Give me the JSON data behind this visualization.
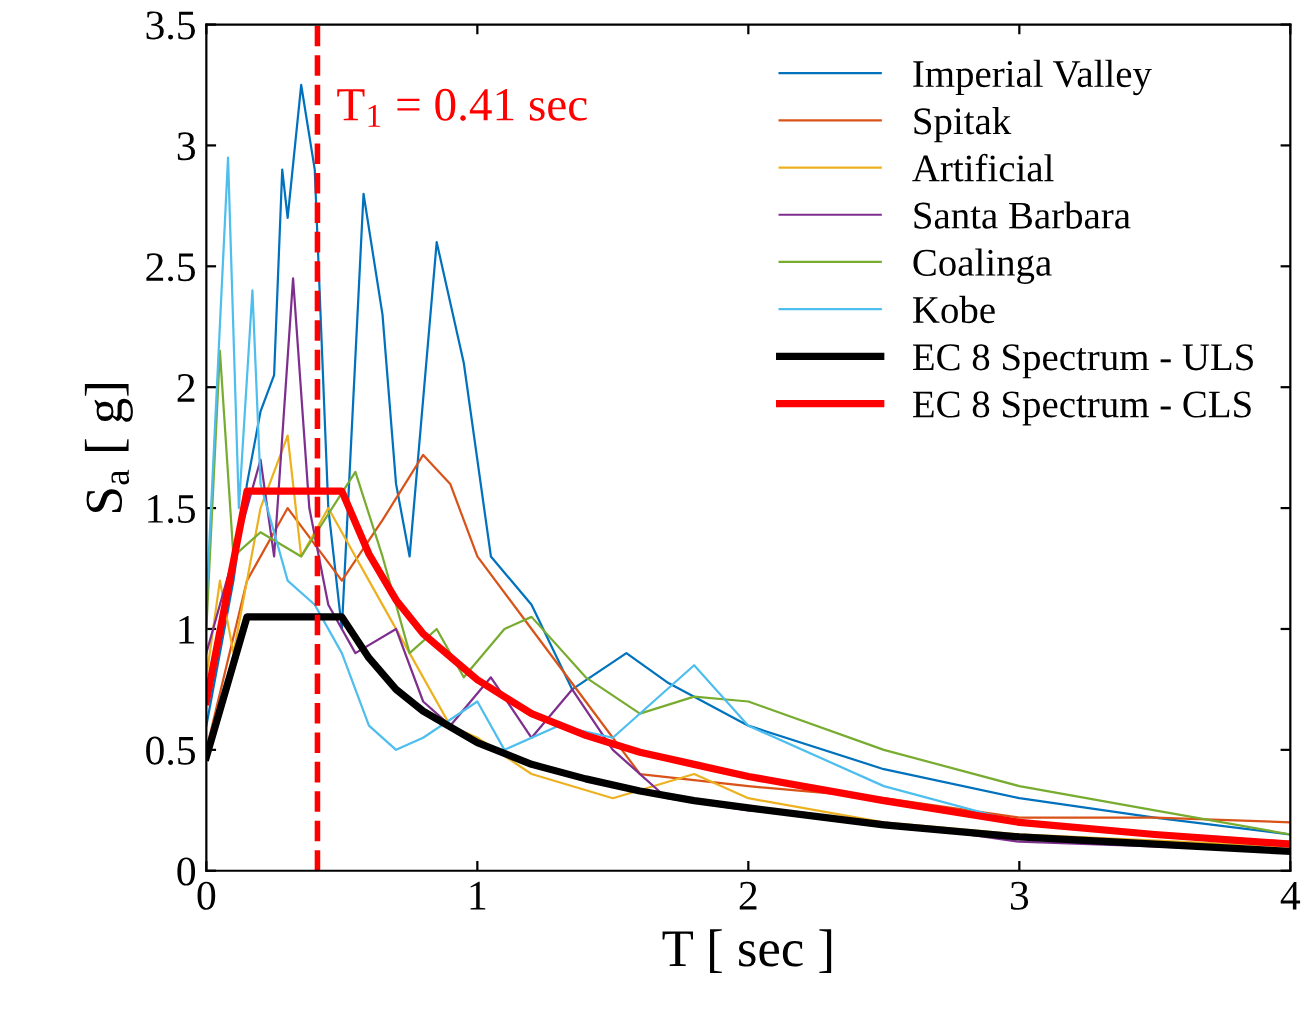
{
  "chart_data": {
    "type": "line",
    "xlabel": "T [ sec ]",
    "ylabel": "S$_{a}$ [ g]",
    "xlim": [
      0,
      4
    ],
    "ylim": [
      0,
      3.5
    ],
    "xticks": [
      0,
      1,
      2,
      3,
      4
    ],
    "yticks": [
      0,
      0.5,
      1,
      1.5,
      2,
      2.5,
      3,
      3.5
    ],
    "grid": false,
    "legend": "top right",
    "line_style": "solid",
    "marker": "none",
    "ref_lines": [
      {
        "axis": "x",
        "value": 0.41,
        "label": "T$_{1}$ = 0.41 sec",
        "color": "#ff0000",
        "line_style": "dashed"
      }
    ],
    "series": [
      {
        "name": "Imperial Valley",
        "color": "#0072bd",
        "x": [
          0,
          0.1,
          0.15,
          0.2,
          0.25,
          0.28,
          0.3,
          0.35,
          0.4,
          0.45,
          0.5,
          0.58,
          0.65,
          0.7,
          0.75,
          0.85,
          0.95,
          1.05,
          1.2,
          1.35,
          1.55,
          1.7,
          2,
          2.5,
          3,
          3.5,
          4
        ],
        "values": [
          0.6,
          1.2,
          1.6,
          1.9,
          2.05,
          2.9,
          2.7,
          3.25,
          2.9,
          1.5,
          1.0,
          2.8,
          2.3,
          1.6,
          1.3,
          2.6,
          2.1,
          1.3,
          1.1,
          0.75,
          0.9,
          0.78,
          0.6,
          0.42,
          0.3,
          0.22,
          0.15
        ]
      },
      {
        "name": "Spitak",
        "color": "#d95319",
        "x": [
          0,
          0.15,
          0.3,
          0.5,
          0.65,
          0.8,
          0.9,
          1,
          1.2,
          1.4,
          1.6,
          2,
          2.5,
          3,
          3.5,
          4
        ],
        "values": [
          0.5,
          1.2,
          1.5,
          1.2,
          1.45,
          1.72,
          1.6,
          1.3,
          1.0,
          0.7,
          0.4,
          0.35,
          0.3,
          0.22,
          0.22,
          0.2
        ]
      },
      {
        "name": "Artificial",
        "color": "#edb120",
        "x": [
          0,
          0.05,
          0.1,
          0.2,
          0.3,
          0.35,
          0.45,
          0.55,
          0.6,
          0.75,
          0.9,
          1,
          1.2,
          1.5,
          1.8,
          2,
          2.5,
          3,
          4
        ],
        "values": [
          0.8,
          1.2,
          0.9,
          1.5,
          1.8,
          1.3,
          1.5,
          1.3,
          1.2,
          0.9,
          0.6,
          0.55,
          0.4,
          0.3,
          0.4,
          0.3,
          0.2,
          0.15,
          0.1
        ]
      },
      {
        "name": "Santa Barbara",
        "color": "#7e2f8e",
        "x": [
          0,
          0.1,
          0.2,
          0.25,
          0.32,
          0.38,
          0.45,
          0.55,
          0.7,
          0.8,
          0.9,
          1.05,
          1.2,
          1.35,
          1.5,
          1.7,
          2,
          2.5,
          3,
          4
        ],
        "values": [
          0.9,
          1.3,
          1.7,
          1.3,
          2.45,
          1.5,
          1.1,
          0.9,
          1.0,
          0.7,
          0.6,
          0.8,
          0.55,
          0.75,
          0.5,
          0.3,
          0.25,
          0.2,
          0.12,
          0.08
        ]
      },
      {
        "name": "Coalinga",
        "color": "#77ac30",
        "x": [
          0,
          0.05,
          0.1,
          0.2,
          0.35,
          0.55,
          0.65,
          0.75,
          0.85,
          0.95,
          1.1,
          1.2,
          1.4,
          1.6,
          1.8,
          2,
          2.5,
          3,
          3.5,
          4
        ],
        "values": [
          1.0,
          2.15,
          1.3,
          1.4,
          1.3,
          1.65,
          1.3,
          0.9,
          1.0,
          0.8,
          1.0,
          1.05,
          0.8,
          0.65,
          0.72,
          0.7,
          0.5,
          0.35,
          0.25,
          0.15
        ]
      },
      {
        "name": "Kobe",
        "color": "#4dbeee",
        "x": [
          0,
          0.08,
          0.12,
          0.17,
          0.2,
          0.3,
          0.4,
          0.5,
          0.6,
          0.7,
          0.8,
          1,
          1.1,
          1.3,
          1.5,
          1.8,
          2,
          2.5,
          3,
          3.5,
          4
        ],
        "values": [
          1.1,
          2.95,
          1.5,
          2.4,
          1.6,
          1.2,
          1.1,
          0.9,
          0.6,
          0.5,
          0.55,
          0.7,
          0.5,
          0.6,
          0.55,
          0.85,
          0.6,
          0.35,
          0.2,
          0.15,
          0.12
        ]
      },
      {
        "name": "EC 8 Spectrum - ULS",
        "color": "#000000",
        "x": [
          0,
          0.15,
          0.5,
          0.6,
          0.7,
          0.8,
          1,
          1.2,
          1.4,
          1.6,
          1.8,
          2,
          2.5,
          3,
          3.5,
          4
        ],
        "values": [
          0.47,
          1.05,
          1.05,
          0.88,
          0.75,
          0.66,
          0.53,
          0.44,
          0.38,
          0.33,
          0.29,
          0.26,
          0.19,
          0.14,
          0.11,
          0.08
        ]
      },
      {
        "name": "EC 8 Spectrum - CLS",
        "color": "#ff0000",
        "x": [
          0,
          0.15,
          0.5,
          0.6,
          0.7,
          0.8,
          1,
          1.2,
          1.4,
          1.6,
          1.8,
          2,
          2.5,
          3,
          3.5,
          4
        ],
        "values": [
          0.7,
          1.57,
          1.57,
          1.31,
          1.12,
          0.98,
          0.79,
          0.65,
          0.56,
          0.49,
          0.44,
          0.39,
          0.29,
          0.2,
          0.15,
          0.11
        ]
      }
    ]
  }
}
